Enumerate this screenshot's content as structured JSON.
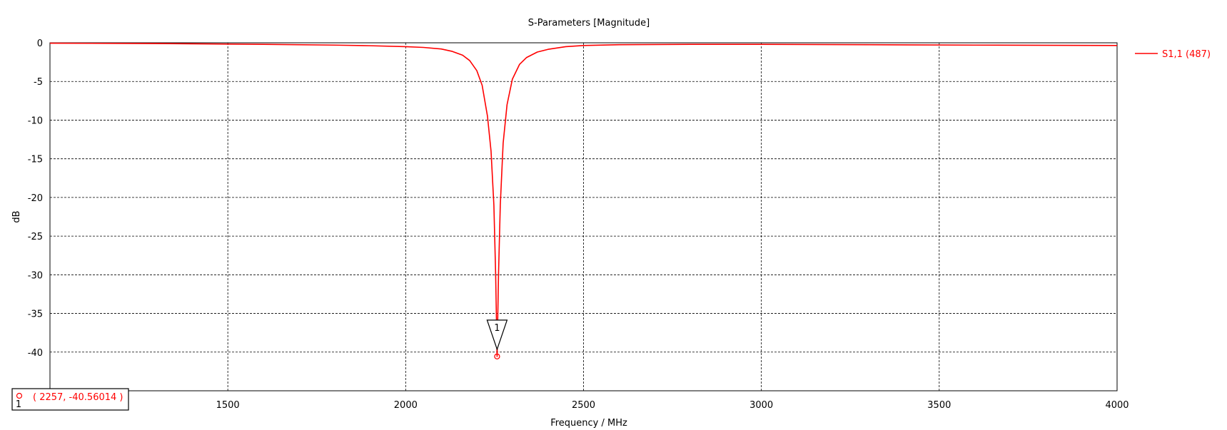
{
  "colors": {
    "series": "#ff0000",
    "grid": "#000000",
    "axis": "#000000",
    "background": "#ffffff"
  },
  "chart_data": {
    "type": "line",
    "title": "S-Parameters [Magnitude]",
    "xlabel": "Frequency / MHz",
    "ylabel": "dB",
    "xlim": [
      1000,
      4000
    ],
    "ylim": [
      -45,
      0
    ],
    "x_ticks": [
      1500,
      2000,
      2500,
      3000,
      3500,
      4000
    ],
    "y_ticks": [
      0,
      -5,
      -10,
      -15,
      -20,
      -25,
      -30,
      -35,
      -40
    ],
    "grid": true,
    "legend": {
      "position": "right",
      "entries": [
        "S1,1 (487)"
      ]
    },
    "series": [
      {
        "name": "S1,1 (487)",
        "x": [
          1000,
          1300,
          1600,
          1800,
          1900,
          2000,
          2050,
          2100,
          2130,
          2160,
          2180,
          2200,
          2215,
          2230,
          2240,
          2248,
          2253,
          2257,
          2261,
          2266,
          2274,
          2285,
          2300,
          2320,
          2340,
          2370,
          2400,
          2450,
          2500,
          2600,
          2800,
          3000,
          3300,
          3600,
          4000
        ],
        "values": [
          -0.05,
          -0.1,
          -0.2,
          -0.3,
          -0.38,
          -0.5,
          -0.6,
          -0.8,
          -1.1,
          -1.6,
          -2.3,
          -3.6,
          -5.5,
          -9.5,
          -14.0,
          -21.0,
          -30.0,
          -40.56,
          -30.0,
          -21.0,
          -13.0,
          -8.0,
          -4.7,
          -2.8,
          -1.9,
          -1.2,
          -0.85,
          -0.5,
          -0.35,
          -0.25,
          -0.2,
          -0.2,
          -0.25,
          -0.3,
          -0.35
        ]
      }
    ],
    "markers": [
      {
        "id": "1",
        "x": 2257,
        "y": -40.56014,
        "label": "( 2257, -40.56014 )"
      }
    ]
  }
}
